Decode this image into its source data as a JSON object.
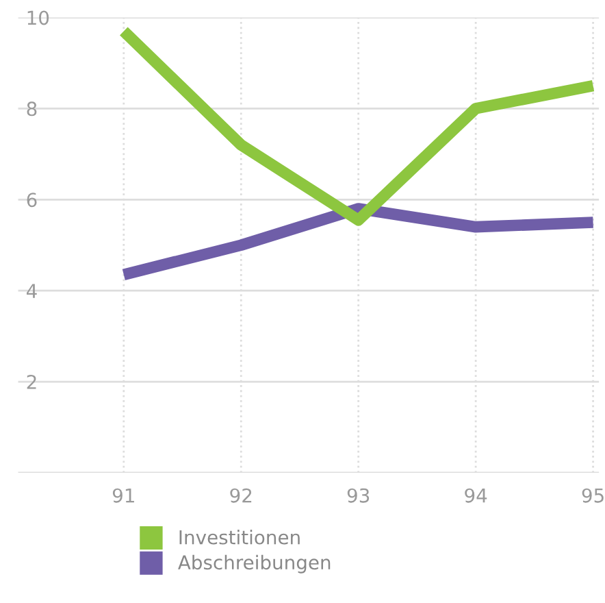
{
  "chart_data": {
    "type": "line",
    "categories": [
      "91",
      "92",
      "93",
      "94",
      "95"
    ],
    "series": [
      {
        "name": "Investitionen",
        "color": "#8dc63f",
        "values": [
          9.7,
          7.2,
          5.55,
          8.0,
          8.5
        ]
      },
      {
        "name": "Abschreibungen",
        "color": "#6f5ea8",
        "values": [
          4.35,
          5.0,
          5.8,
          5.4,
          5.5
        ]
      }
    ],
    "ylim": [
      0,
      10
    ],
    "yticks": [
      {
        "value": 0,
        "label": null
      },
      2,
      4,
      6,
      8,
      10
    ],
    "grid": true,
    "legend": "bottom",
    "marker": "none",
    "line_style": "solid"
  }
}
